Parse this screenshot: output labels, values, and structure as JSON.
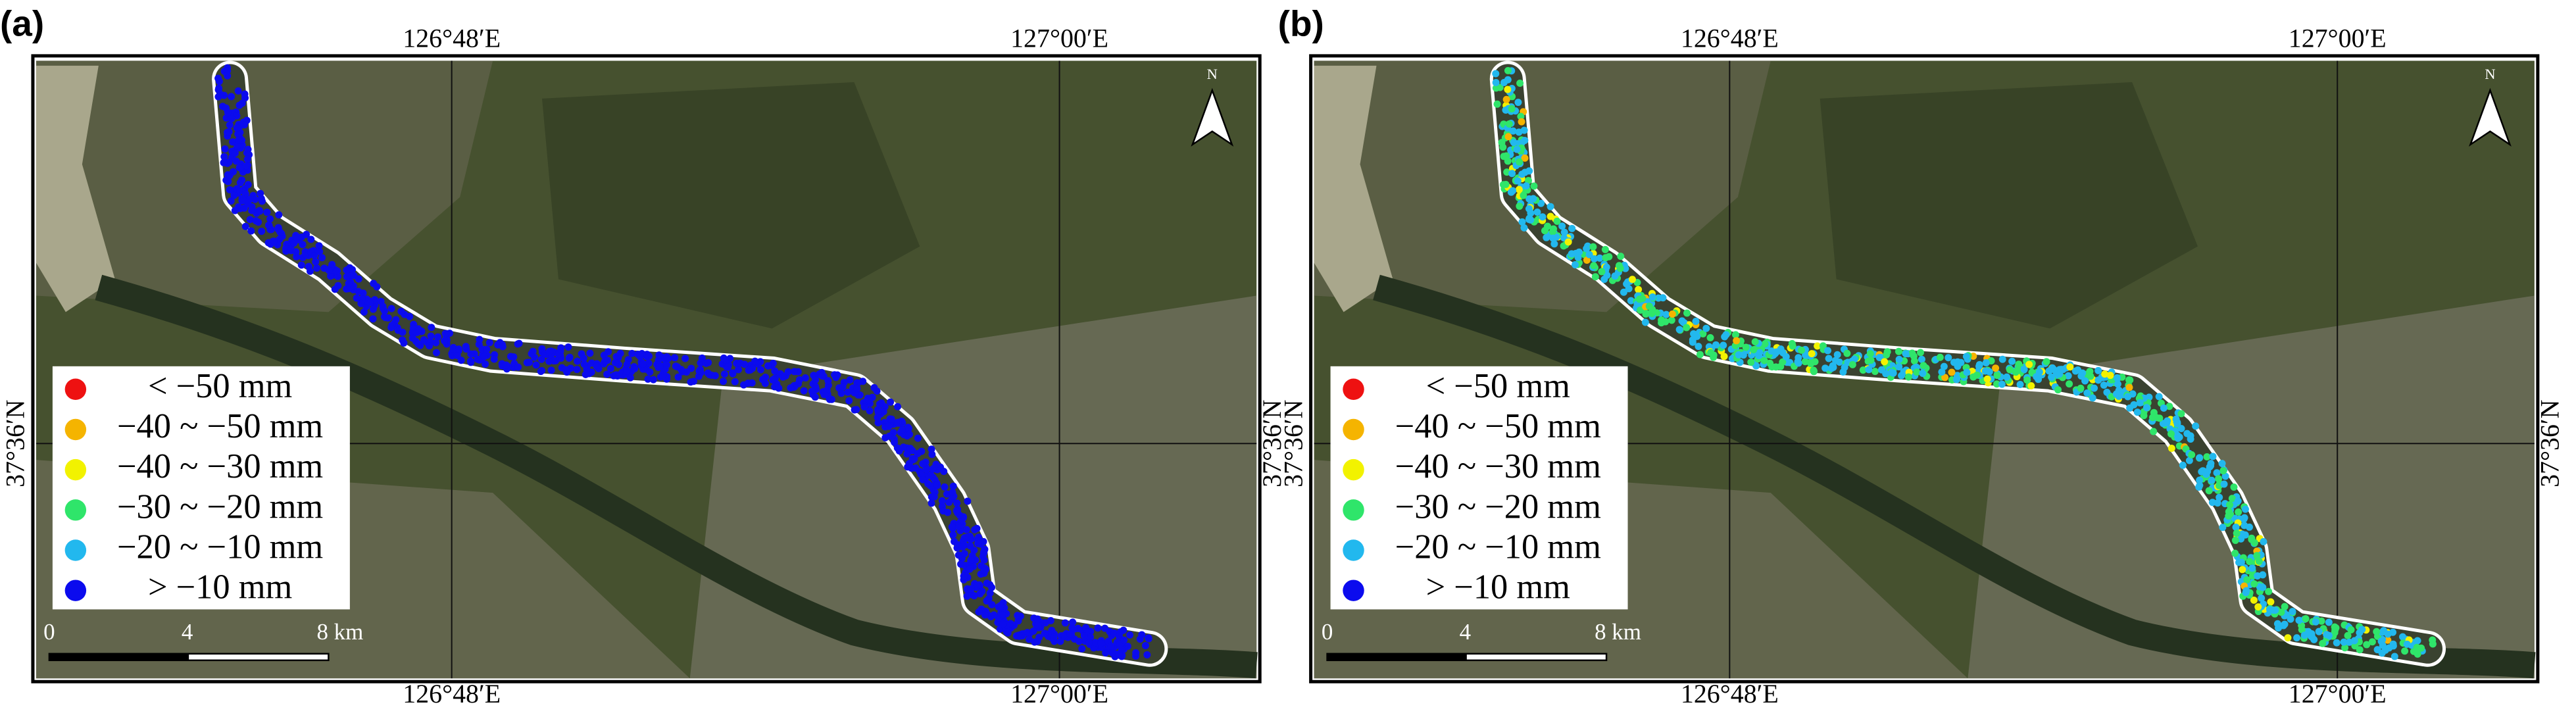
{
  "panels": [
    {
      "label": "(a)",
      "top_lon_labels": [
        "126°48′E",
        "127°00′E"
      ],
      "bottom_lon_labels": [
        "126°48′E",
        "127°00′E"
      ],
      "lat_labels": [
        "37°36′N",
        "37°36′N"
      ],
      "north": "N",
      "scale_labels": [
        "0",
        "4",
        "8 km"
      ],
      "legend": [
        {
          "text": "< −50 mm",
          "color": "#ee1111"
        },
        {
          "text": "−40 ~ −50 mm",
          "color": "#f5b400"
        },
        {
          "text": "−40 ~ −30 mm",
          "color": "#f2f200"
        },
        {
          "text": "−30 ~ −20 mm",
          "color": "#2fe56a"
        },
        {
          "text": "−20 ~ −10 mm",
          "color": "#22b8ee"
        },
        {
          "text": "> −10 mm",
          "color": "#0b0bee"
        }
      ]
    },
    {
      "label": "(b)",
      "top_lon_labels": [
        "126°48′E",
        "127°00′E"
      ],
      "bottom_lon_labels": [
        "126°48′E",
        "127°00′E"
      ],
      "lat_labels": [
        "37°36′N",
        "37°36′N"
      ],
      "north": "N",
      "scale_labels": [
        "0",
        "4",
        "8 km"
      ],
      "legend": [
        {
          "text": "< −50 mm",
          "color": "#ee1111"
        },
        {
          "text": "−40 ~ −50 mm",
          "color": "#f5b400"
        },
        {
          "text": "−40 ~ −30 mm",
          "color": "#f2f200"
        },
        {
          "text": "−30 ~ −20 mm",
          "color": "#2fe56a"
        },
        {
          "text": "−20 ~ −10 mm",
          "color": "#22b8ee"
        },
        {
          "text": "> −10 mm",
          "color": "#0b0bee"
        }
      ]
    }
  ]
}
